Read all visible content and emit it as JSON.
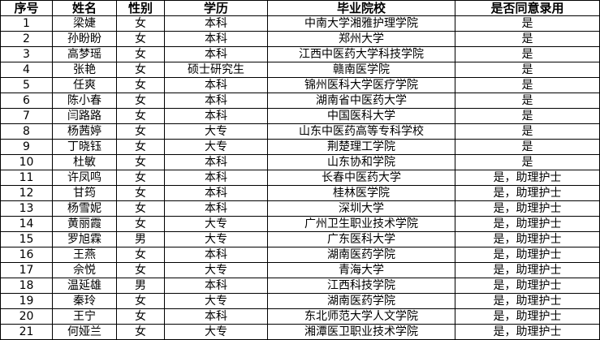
{
  "headers": [
    "序号",
    "姓名",
    "性别",
    "学历",
    "毕业院校",
    "是否同意录用"
  ],
  "rows": [
    [
      "1",
      "梁婕",
      "女",
      "本科",
      "中南大学湘雅护理学院",
      "是"
    ],
    [
      "2",
      "孙盼盼",
      "女",
      "本科",
      "郑州大学",
      "是"
    ],
    [
      "3",
      "高梦瑶",
      "女",
      "本科",
      "江西中医药大学科技学院",
      "是"
    ],
    [
      "4",
      "张艳",
      "女",
      "硕士研究生",
      "赣南医学院",
      "是"
    ],
    [
      "5",
      "任爽",
      "女",
      "本科",
      "锦州医科大学医疗学院",
      "是"
    ],
    [
      "6",
      "陈小春",
      "女",
      "本科",
      "湖南省中医药大学",
      "是"
    ],
    [
      "7",
      "闫路路",
      "女",
      "本科",
      "中国医科大学",
      "是"
    ],
    [
      "8",
      "杨茜婷",
      "女",
      "大专",
      "山东中医药高等专科学校",
      "是"
    ],
    [
      "9",
      "丁晓钰",
      "女",
      "大专",
      "荆楚理工学院",
      "是"
    ],
    [
      "10",
      "杜敏",
      "女",
      "本科",
      "山东协和学院",
      "是"
    ],
    [
      "11",
      "许凤鸣",
      "女",
      "本科",
      "长春中医药大学",
      "是，助理护士"
    ],
    [
      "12",
      "甘筠",
      "女",
      "本科",
      "桂林医学院",
      "是，助理护士"
    ],
    [
      "13",
      "杨雪妮",
      "女",
      "本科",
      "深圳大学",
      "是，助理护士"
    ],
    [
      "14",
      "黄丽霞",
      "女",
      "大专",
      "广州卫生职业技术学院",
      "是，助理护士"
    ],
    [
      "15",
      "罗旭霖",
      "男",
      "大专",
      "广东医科大学",
      "是，助理护士"
    ],
    [
      "16",
      "王燕",
      "女",
      "本科",
      "湖南医药学院",
      "是，助理护士"
    ],
    [
      "17",
      "佘悦",
      "女",
      "大专",
      "青海大学",
      "是，助理护士"
    ],
    [
      "18",
      "温延雄",
      "男",
      "本科",
      "江西科技学院",
      "是，助理护士"
    ],
    [
      "19",
      "秦玲",
      "女",
      "大专",
      "湖南医药学院",
      "是，助理护士"
    ],
    [
      "20",
      "王宁",
      "女",
      "本科",
      "东北师范大学人文学院",
      "是，助理护士"
    ],
    [
      "21",
      "何娅兰",
      "女",
      "大专",
      "湘潭医卫职业技术学院",
      "是，助理护士"
    ]
  ]
}
